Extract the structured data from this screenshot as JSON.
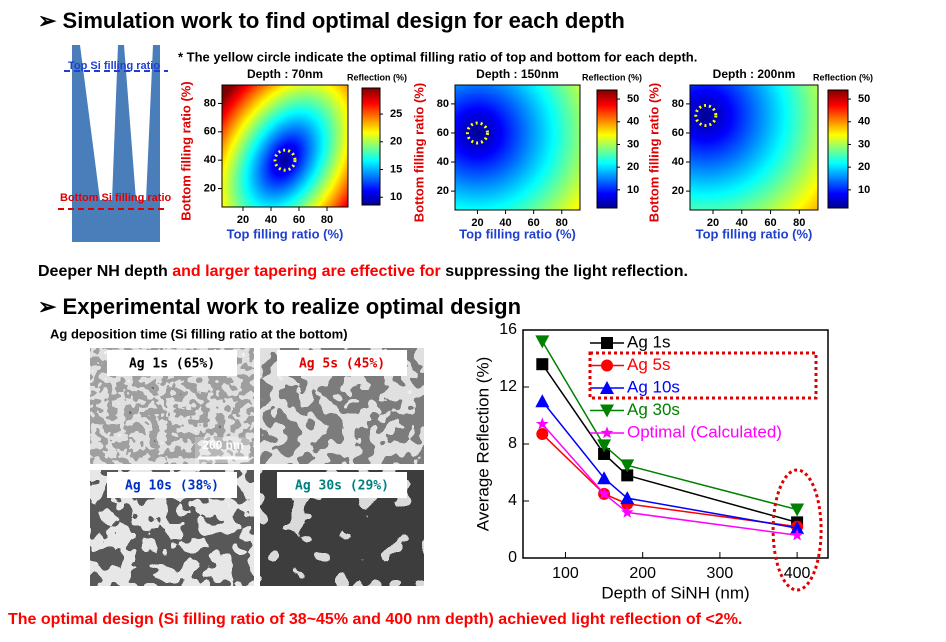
{
  "header": {
    "title": "➢ Simulation work to find optimal design for each depth"
  },
  "schematic": {
    "top_label": "Top Si filling ratio",
    "bottom_label": "Bottom Si filling ratio"
  },
  "note": "* The yellow circle indicate the optimal filling ratio of top and bottom for each depth.",
  "heatmaps": [
    {
      "title": "Depth : 70nm",
      "colorbar_label": "Reflection (%)",
      "xlabel": "Top filling ratio (%)",
      "ylabel": "Bottom filling ratio (%)",
      "xlim": [
        5,
        95
      ],
      "ylim": [
        7,
        93
      ],
      "xticks": [
        20,
        40,
        60,
        80
      ],
      "yticks": [
        20,
        40,
        60,
        80
      ],
      "clim": [
        8.6,
        29.7
      ],
      "cticks": [
        10,
        15,
        20,
        25
      ],
      "optimal": {
        "top": 50,
        "bottom": 40
      }
    },
    {
      "title": "Depth : 150nm",
      "colorbar_label": "Reflection (%)",
      "xlabel": "Top filling ratio (%)",
      "ylabel": "Bottom filling ratio (%)",
      "xlim": [
        4,
        93
      ],
      "ylim": [
        7,
        93
      ],
      "xticks": [
        20,
        40,
        60,
        80
      ],
      "yticks": [
        20,
        40,
        60,
        80
      ],
      "clim": [
        2,
        54
      ],
      "cticks": [
        10,
        20,
        30,
        40,
        50
      ],
      "optimal": {
        "top": 20,
        "bottom": 60
      }
    },
    {
      "title": "Depth : 200nm",
      "colorbar_label": "Reflection (%)",
      "xlabel": "Top filling ratio (%)",
      "ylabel": "Bottom filling ratio (%)",
      "xlim": [
        4,
        93
      ],
      "ylim": [
        7,
        93
      ],
      "xticks": [
        20,
        40,
        60,
        80
      ],
      "yticks": [
        20,
        40,
        60,
        80
      ],
      "clim": [
        2,
        54
      ],
      "cticks": [
        10,
        20,
        30,
        40,
        50
      ],
      "optimal": {
        "top": 15,
        "bottom": 72
      }
    }
  ],
  "statement": {
    "parts": [
      "Deeper NH depth ",
      "and larger tapering are effective for",
      " suppressing the light reflection."
    ]
  },
  "section2": {
    "title": "➢ Experimental work to realize optimal design",
    "caption": "Ag deposition time (Si filling ratio at the bottom)",
    "images": [
      {
        "label": "Ag 1s (65%)",
        "color": "#000000"
      },
      {
        "label": "Ag 5s (45%)",
        "color": "#e00000"
      },
      {
        "label": "Ag 10s (38%)",
        "color": "#0030c0"
      },
      {
        "label": "Ag 30s (29%)",
        "color": "#008080"
      }
    ],
    "scale_bar": "200 nm"
  },
  "chart_data": {
    "type": "line",
    "xlabel": "Depth of SiNH (nm)",
    "ylabel": "Average Reflection (%)",
    "x": [
      70,
      150,
      180,
      400
    ],
    "xlim": [
      45,
      440
    ],
    "xticks": [
      100,
      200,
      300,
      400
    ],
    "ylim": [
      0,
      16
    ],
    "yticks": [
      0,
      4,
      8,
      12,
      16
    ],
    "legend": "upper right",
    "series": [
      {
        "name": "Ag 1s",
        "color": "#000000",
        "marker": "square",
        "values": [
          13.6,
          7.3,
          5.8,
          2.5
        ]
      },
      {
        "name": "Ag 5s",
        "color": "#ff0000",
        "marker": "circle",
        "values": [
          8.7,
          4.5,
          3.8,
          2.2
        ]
      },
      {
        "name": "Ag 10s",
        "color": "#0000ff",
        "marker": "triangle-up",
        "values": [
          11,
          5.6,
          4.2,
          2.1
        ]
      },
      {
        "name": "Ag 30s",
        "color": "#008000",
        "marker": "triangle-down",
        "values": [
          15.2,
          7.9,
          6.5,
          3.4
        ]
      },
      {
        "name": "Optimal (Calculated)",
        "color": "#ff00ff",
        "marker": "star",
        "values": [
          9.4,
          4.5,
          3.2,
          1.6
        ]
      }
    ]
  },
  "footer": "The optimal design (Si filling ratio of 38~45% and 400 nm depth) achieved light reflection of <2%."
}
